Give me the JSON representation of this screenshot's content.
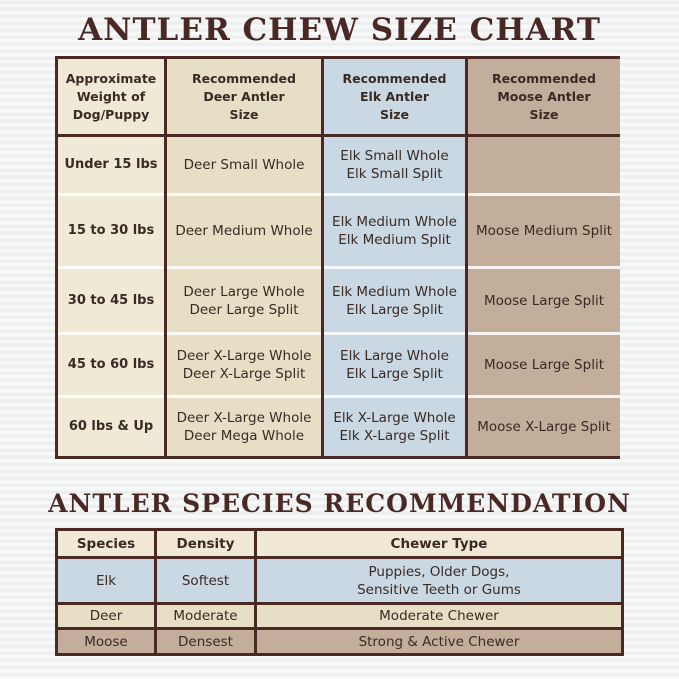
{
  "titles": {
    "size_chart": "ANTLER CHEW SIZE CHART",
    "species": "ANTLER SPECIES RECOMMENDATION"
  },
  "colors": {
    "dark_brown": "#4a2824",
    "weight_col": "#efe9d6",
    "deer_col": "#e6dfc6",
    "elk_col": "#c9d8e3",
    "moose_col": "#c3ae9c"
  },
  "size_chart": {
    "headers": {
      "weight": "Approximate\nWeight of\nDog/Puppy",
      "deer": "Recommended\nDeer Antler\nSize",
      "elk": "Recommended\nElk Antler\nSize",
      "moose": "Recommended\nMoose Antler\nSize"
    },
    "rows": [
      {
        "weight": "Under 15 lbs",
        "deer": "Deer Small Whole",
        "elk": "Elk Small Whole\nElk Small Split",
        "moose": ""
      },
      {
        "weight": "15 to 30 lbs",
        "deer": "Deer Medium Whole",
        "elk": "Elk Medium Whole\nElk Medium Split",
        "moose": "Moose Medium Split"
      },
      {
        "weight": "30 to 45 lbs",
        "deer": "Deer Large Whole\nDeer Large Split",
        "elk": "Elk Medium Whole\nElk Large Split",
        "moose": "Moose Large Split"
      },
      {
        "weight": "45 to 60 lbs",
        "deer": "Deer X-Large Whole\nDeer X-Large Split",
        "elk": "Elk Large Whole\nElk Large Split",
        "moose": "Moose Large Split"
      },
      {
        "weight": "60 lbs & Up",
        "deer": "Deer X-Large Whole\nDeer Mega Whole",
        "elk": "Elk X-Large Whole\nElk X-Large Split",
        "moose": "Moose X-Large Split"
      }
    ]
  },
  "species_table": {
    "headers": {
      "species": "Species",
      "density": "Density",
      "chewer": "Chewer Type"
    },
    "rows": [
      {
        "species": "Elk",
        "density": "Softest",
        "chewer": "Puppies, Older Dogs,\nSensitive Teeth or Gums"
      },
      {
        "species": "Deer",
        "density": "Moderate",
        "chewer": "Moderate Chewer"
      },
      {
        "species": "Moose",
        "density": "Densest",
        "chewer": "Strong & Active Chewer"
      }
    ]
  }
}
